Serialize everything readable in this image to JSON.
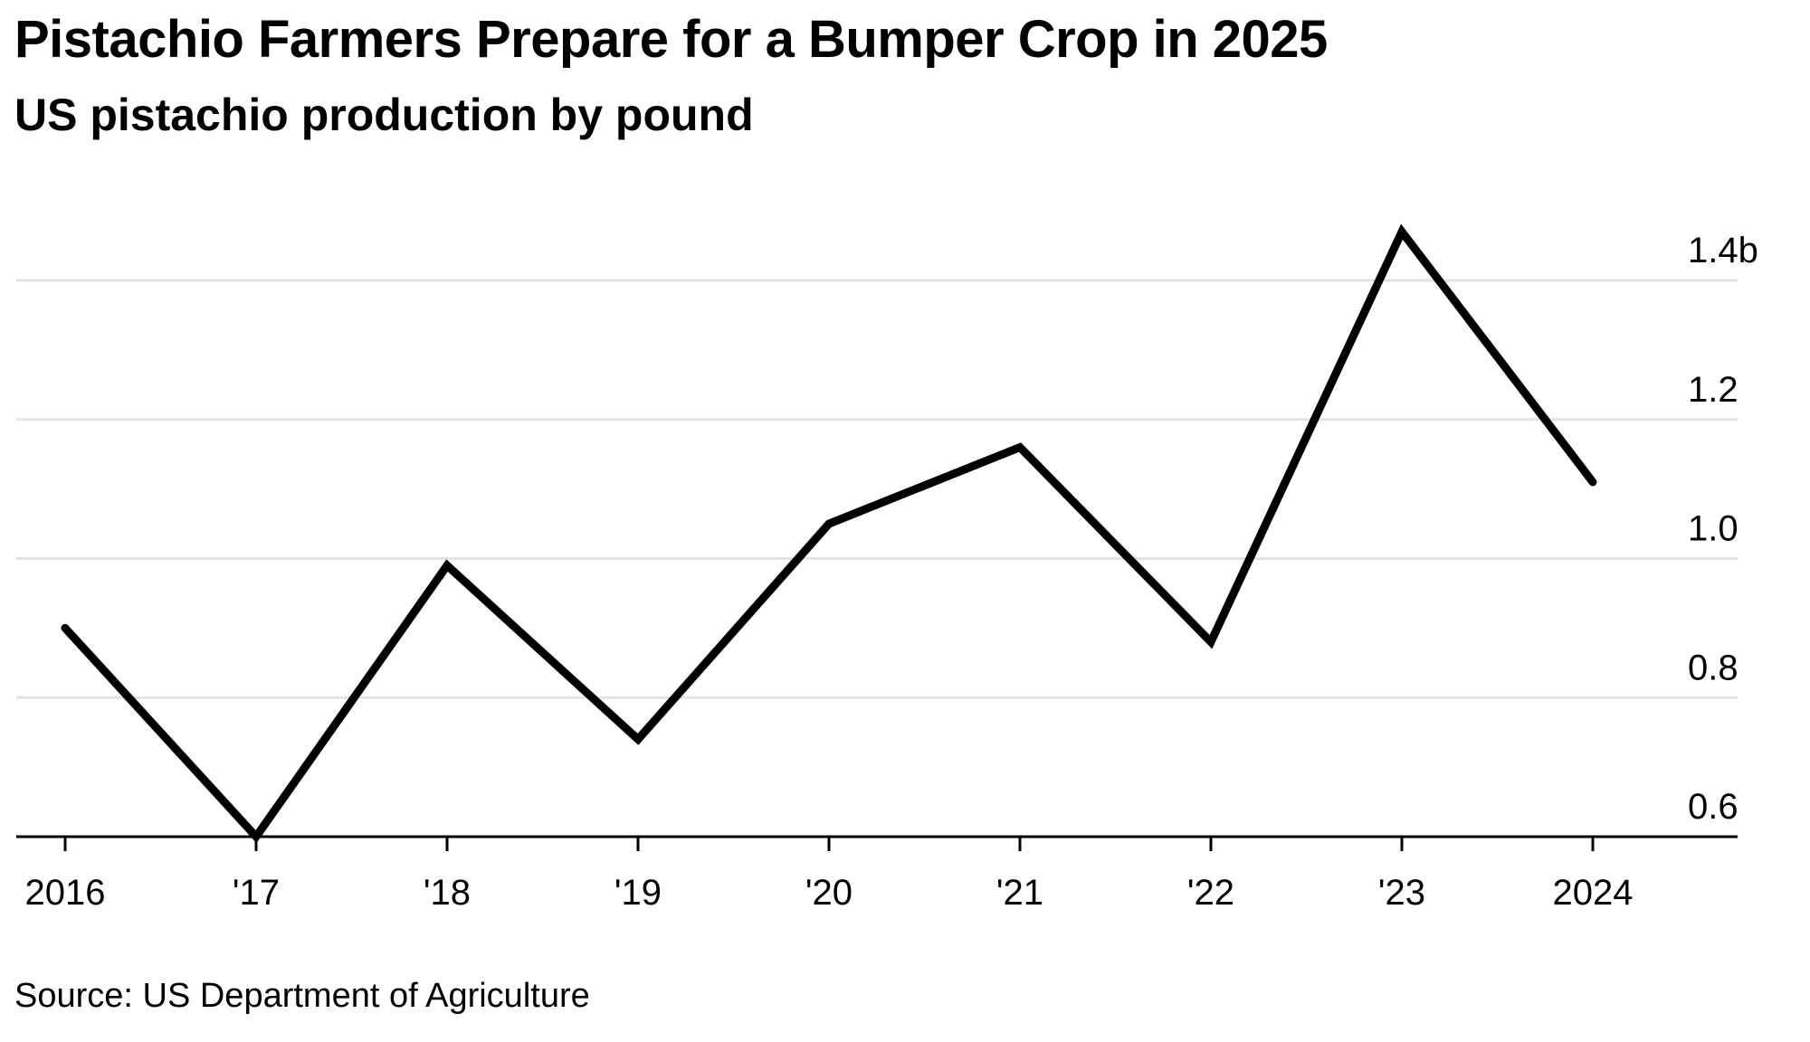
{
  "title": "Pistachio Farmers Prepare for a Bumper Crop in 2025",
  "subtitle": "US pistachio production by pound",
  "source": "Source: US Department of Agriculture",
  "colors": {
    "line": "#000000",
    "grid": "#e3e3e3",
    "axis": "#000000",
    "background": "#ffffff"
  },
  "chart_data": {
    "type": "line",
    "x": [
      2016,
      2017,
      2018,
      2019,
      2020,
      2021,
      2022,
      2023,
      2024
    ],
    "x_tick_labels": [
      "2016",
      "'17",
      "'18",
      "'19",
      "'20",
      "'21",
      "'22",
      "'23",
      "2024"
    ],
    "series": [
      {
        "values": [
          0.9,
          0.6,
          0.99,
          0.74,
          1.05,
          1.16,
          0.88,
          1.47,
          1.11
        ]
      }
    ],
    "y_ticks": [
      0.6,
      0.8,
      1.0,
      1.2,
      1.4
    ],
    "y_tick_labels": [
      "0.6",
      "0.8",
      "1.0",
      "1.2",
      "1.4b"
    ],
    "ylim": [
      0.6,
      1.4
    ],
    "y_axis_side": "right",
    "grid": true,
    "legend": "none"
  }
}
